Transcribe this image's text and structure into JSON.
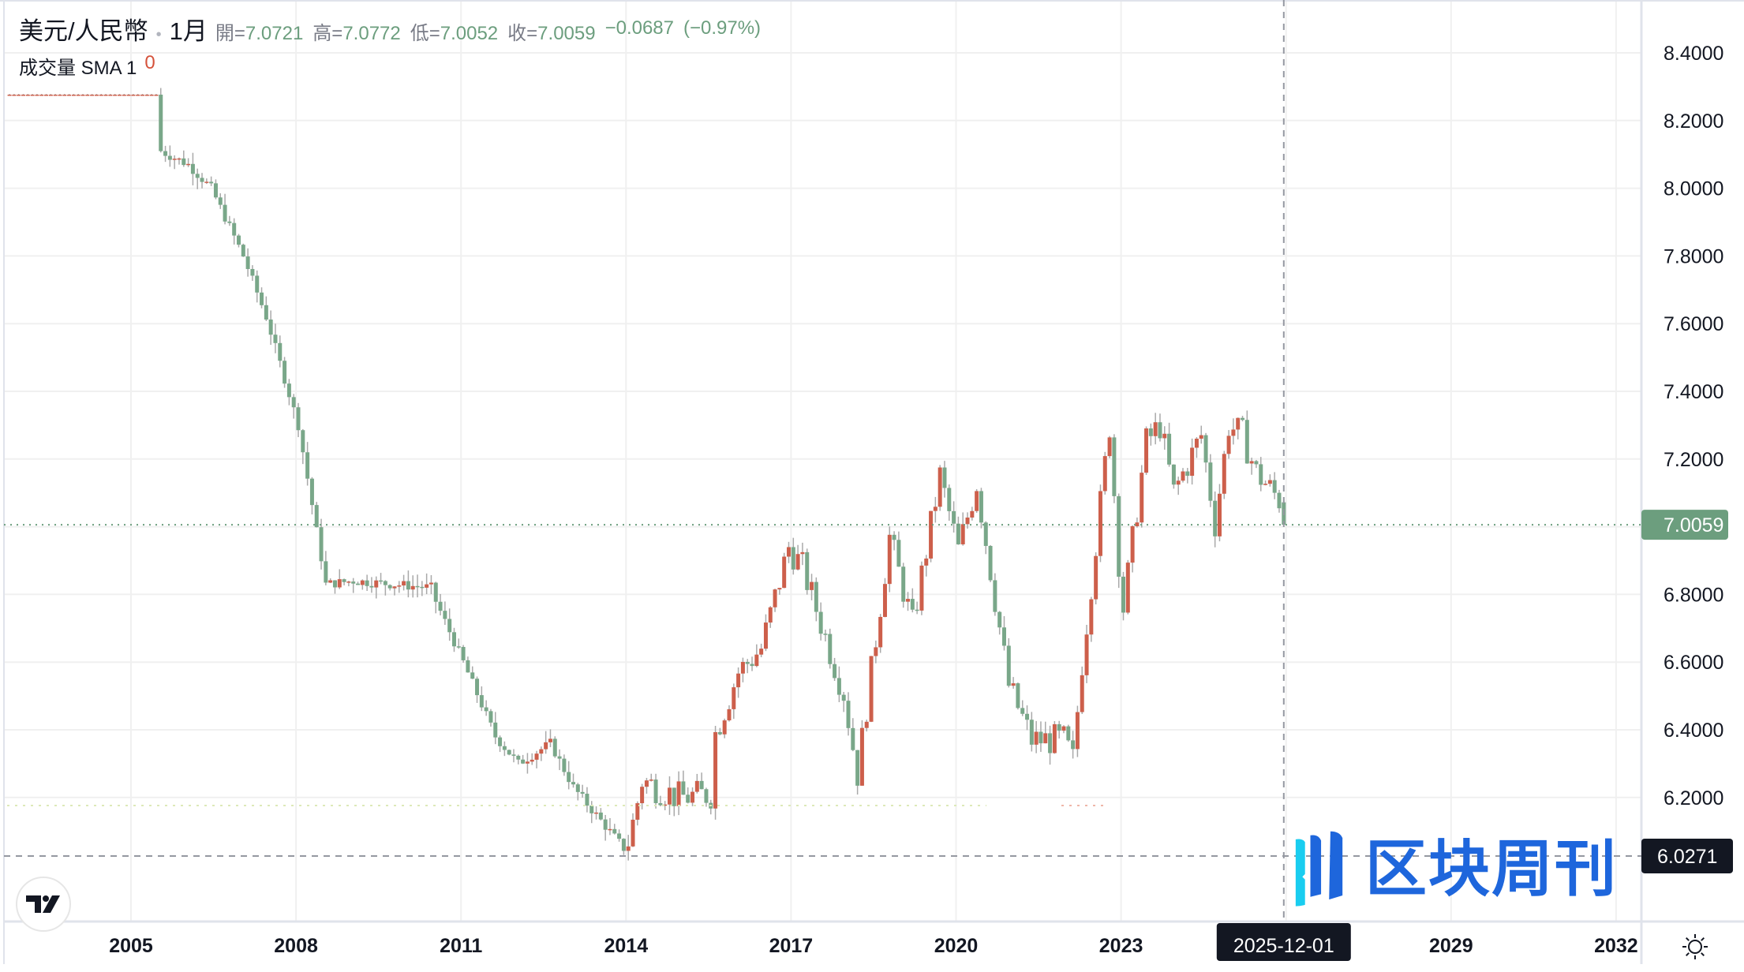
{
  "header": {
    "symbol": "美元/人民幣",
    "interval": "1月",
    "open_label": "開=",
    "open": "7.0721",
    "high_label": "高=",
    "high": "7.0772",
    "low_label": "低=",
    "low": "7.0052",
    "close_label": "收=",
    "close": "7.0059",
    "change": "−0.0687",
    "change_pct": "(−0.97%)"
  },
  "volume_legend": {
    "label": "成交量 SMA 1",
    "value": "0"
  },
  "watermark": "区块周刊",
  "colors": {
    "up": "#cd5f4b",
    "down": "#79a789",
    "wick": "#a9a9a9",
    "grid": "#f0f3fa",
    "price_line": "#6c9e7e",
    "crosshair": "#9598a1",
    "label_dark": "#131722"
  },
  "chart_data": {
    "type": "candlestick",
    "interval": "monthly",
    "up_color_meaning": "red = up, green = down",
    "x_ticks": [
      "2005",
      "2008",
      "2011",
      "2014",
      "2017",
      "2020",
      "2023",
      "2029",
      "2032"
    ],
    "y_ticks": [
      "8.4000",
      "8.2000",
      "8.0000",
      "7.8000",
      "7.6000",
      "7.4000",
      "7.2000",
      "6.8000",
      "6.6000",
      "6.4000",
      "6.2000"
    ],
    "ylim": [
      5.98,
      8.5
    ],
    "xlim": [
      "2002-09",
      "2032-08"
    ],
    "grid": true,
    "last_price_label": "7.0059",
    "crosshair": {
      "date_label": "2025-12-01",
      "price_label": "6.0271"
    },
    "close_keyframes": [
      [
        "2002-09",
        8.2765
      ],
      [
        "2005-06",
        8.2765
      ],
      [
        "2005-07",
        8.11
      ],
      [
        "2006-01",
        8.07
      ],
      [
        "2006-06",
        8.0
      ],
      [
        "2007-01",
        7.8
      ],
      [
        "2007-06",
        7.62
      ],
      [
        "2008-01",
        7.3
      ],
      [
        "2008-07",
        6.83
      ],
      [
        "2009-01",
        6.84
      ],
      [
        "2010-06",
        6.82
      ],
      [
        "2010-07",
        6.78
      ],
      [
        "2011-01",
        6.6
      ],
      [
        "2011-08",
        6.38
      ],
      [
        "2012-01",
        6.3
      ],
      [
        "2012-08",
        6.36
      ],
      [
        "2013-01",
        6.23
      ],
      [
        "2013-12",
        6.05
      ],
      [
        "2014-01",
        6.06
      ],
      [
        "2014-04",
        6.25
      ],
      [
        "2014-12",
        6.2
      ],
      [
        "2015-07",
        6.21
      ],
      [
        "2015-08",
        6.39
      ],
      [
        "2016-01",
        6.57
      ],
      [
        "2016-06",
        6.64
      ],
      [
        "2016-12",
        6.94
      ],
      [
        "2017-03",
        6.88
      ],
      [
        "2017-12",
        6.51
      ],
      [
        "2018-03",
        6.27
      ],
      [
        "2018-10",
        6.97
      ],
      [
        "2019-03",
        6.71
      ],
      [
        "2019-09",
        7.15
      ],
      [
        "2020-01",
        6.93
      ],
      [
        "2020-05",
        7.13
      ],
      [
        "2020-12",
        6.53
      ],
      [
        "2021-05",
        6.37
      ],
      [
        "2021-12",
        6.37
      ],
      [
        "2022-02",
        6.31
      ],
      [
        "2022-04",
        6.6
      ],
      [
        "2022-10",
        7.3
      ],
      [
        "2022-12",
        6.9
      ],
      [
        "2023-01",
        6.76
      ],
      [
        "2023-06",
        7.25
      ],
      [
        "2023-09",
        7.3
      ],
      [
        "2023-12",
        7.1
      ],
      [
        "2024-06",
        7.27
      ],
      [
        "2024-09",
        7.01
      ],
      [
        "2024-12",
        7.3
      ],
      [
        "2025-03",
        7.27
      ],
      [
        "2025-06",
        7.16
      ],
      [
        "2025-11",
        7.08
      ]
    ],
    "last_candle": {
      "date": "2025-12",
      "open": 7.0721,
      "high": 7.0772,
      "low": 7.0052,
      "close": 7.0059
    }
  }
}
